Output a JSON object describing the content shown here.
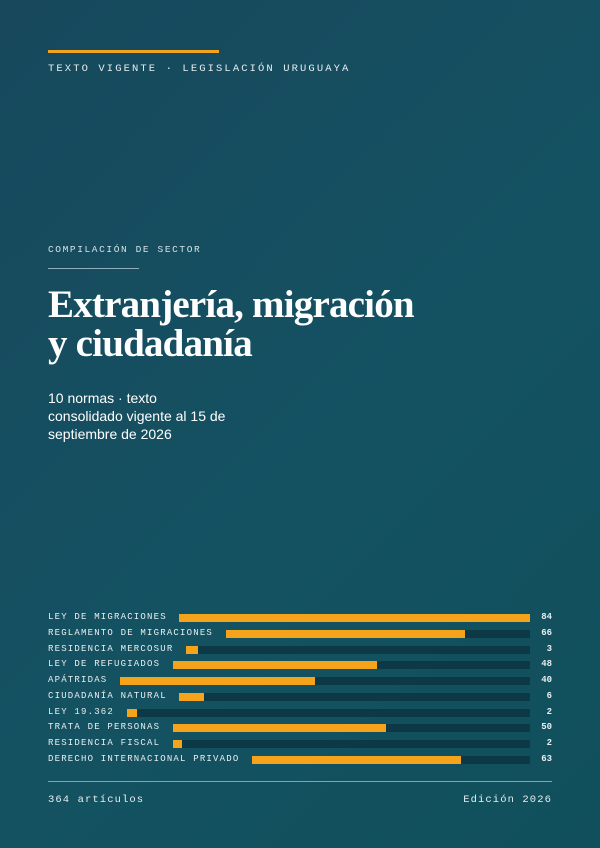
{
  "header": {
    "kicker": "TEXTO VIGENTE · LEGISLACIÓN URUGUAYA"
  },
  "main": {
    "section_label": "COMPILACIÓN DE SECTOR",
    "title_line1": "Extranjería, migración",
    "title_line2": "y ciudadanía",
    "subtitle_line1": "10 normas · texto",
    "subtitle_line2": "consolidado vigente al 15 de",
    "subtitle_line3": "septiembre de 2026"
  },
  "accent_color": "#f5a31a",
  "norms": [
    {
      "label": "LEY DE MIGRACIONES",
      "count": "84",
      "value": 84
    },
    {
      "label": "REGLAMENTO DE MIGRACIONES",
      "count": "66",
      "value": 66
    },
    {
      "label": "RESIDENCIA MERCOSUR",
      "count": "3",
      "value": 3
    },
    {
      "label": "LEY DE REFUGIADOS",
      "count": "48",
      "value": 48
    },
    {
      "label": "APÁTRIDAS",
      "count": "40",
      "value": 40
    },
    {
      "label": "CIUDADANÍA NATURAL",
      "count": "6",
      "value": 6
    },
    {
      "label": "LEY 19.362",
      "count": "2",
      "value": 2
    },
    {
      "label": "TRATA DE PERSONAS",
      "count": "50",
      "value": 50
    },
    {
      "label": "RESIDENCIA FISCAL",
      "count": "2",
      "value": 2
    },
    {
      "label": "DERECHO INTERNACIONAL PRIVADO",
      "count": "63",
      "value": 63
    }
  ],
  "footer": {
    "articles": "364 artículos",
    "edition": "Edición 2026"
  }
}
